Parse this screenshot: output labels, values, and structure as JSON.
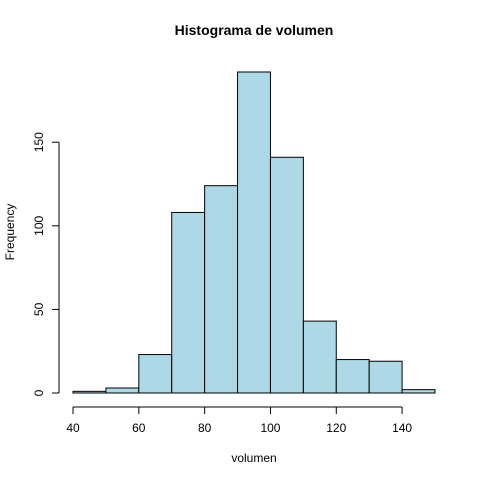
{
  "chart_data": {
    "type": "bar",
    "title": "Histograma de volumen",
    "xlabel": "volumen",
    "ylabel": "Frequency",
    "bins": [
      {
        "start": 40,
        "end": 50,
        "count": 1
      },
      {
        "start": 50,
        "end": 60,
        "count": 3
      },
      {
        "start": 60,
        "end": 70,
        "count": 23
      },
      {
        "start": 70,
        "end": 80,
        "count": 108
      },
      {
        "start": 80,
        "end": 90,
        "count": 124
      },
      {
        "start": 90,
        "end": 100,
        "count": 192
      },
      {
        "start": 100,
        "end": 110,
        "count": 141
      },
      {
        "start": 110,
        "end": 120,
        "count": 43
      },
      {
        "start": 120,
        "end": 130,
        "count": 20
      },
      {
        "start": 130,
        "end": 140,
        "count": 19
      },
      {
        "start": 140,
        "end": 150,
        "count": 2
      }
    ],
    "xticks": [
      40,
      60,
      80,
      100,
      120,
      140
    ],
    "yticks": [
      0,
      50,
      100,
      150
    ],
    "xlim": [
      40,
      150
    ],
    "ylim": [
      0,
      192
    ],
    "bar_color": "#add8e6",
    "grid": false
  }
}
